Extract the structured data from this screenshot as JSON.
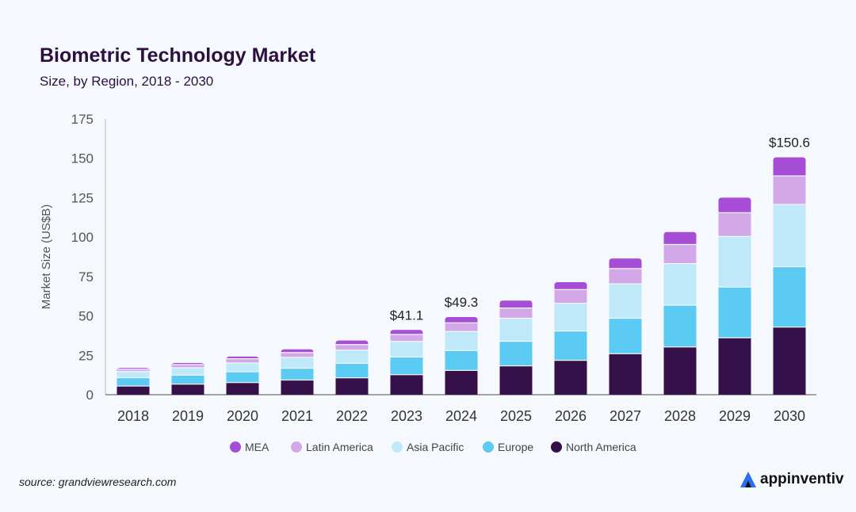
{
  "chart_data": {
    "type": "bar",
    "stacked": true,
    "title": "Biometric Technology Market",
    "subtitle": "Size, by Region, 2018 - 2030",
    "xlabel": "",
    "ylabel": "Market Size (US$B)",
    "ylim": [
      0,
      175
    ],
    "yticks": [
      0,
      25,
      50,
      75,
      100,
      125,
      150,
      175
    ],
    "grid": false,
    "legend_position": "bottom",
    "categories": [
      "2018",
      "2019",
      "2020",
      "2021",
      "2022",
      "2023",
      "2024",
      "2025",
      "2026",
      "2027",
      "2028",
      "2029",
      "2030"
    ],
    "series": [
      {
        "name": "North America",
        "color": "#361149",
        "values": [
          5.2,
          6.4,
          7.4,
          9.0,
          10.4,
          12.4,
          15.1,
          18.0,
          21.5,
          25.7,
          30.0,
          35.8,
          42.6
        ]
      },
      {
        "name": "Europe",
        "color": "#5ccbf3",
        "values": [
          5.3,
          5.7,
          6.9,
          7.5,
          9.2,
          11.2,
          12.6,
          15.6,
          18.6,
          22.5,
          26.5,
          32.2,
          38.3
        ]
      },
      {
        "name": "Asia Pacific",
        "color": "#bfe9f9",
        "values": [
          3.9,
          4.7,
          5.5,
          6.9,
          8.4,
          9.9,
          12.1,
          14.6,
          17.6,
          21.8,
          26.4,
          32.1,
          39.5
        ]
      },
      {
        "name": "Latin America",
        "color": "#d3a8e8",
        "values": [
          1.4,
          2.0,
          2.7,
          3.0,
          3.5,
          4.4,
          5.5,
          6.5,
          8.7,
          9.7,
          12.1,
          15.1,
          18.1
        ]
      },
      {
        "name": "MEA",
        "color": "#a64fd6",
        "values": [
          1.2,
          1.3,
          1.7,
          2.4,
          2.9,
          3.2,
          4.0,
          5.0,
          5.0,
          6.7,
          8.2,
          9.8,
          12.1
        ]
      }
    ],
    "legend_order": [
      "MEA",
      "Latin America",
      "Asia Pacific",
      "Europe",
      "North America"
    ],
    "annotations": [
      {
        "category": "2023",
        "label": "$41.1"
      },
      {
        "category": "2024",
        "label": "$49.3"
      },
      {
        "category": "2030",
        "label": "$150.6"
      }
    ]
  },
  "source": "source: grandviewresearch.com",
  "logo_text": "appinventiv"
}
